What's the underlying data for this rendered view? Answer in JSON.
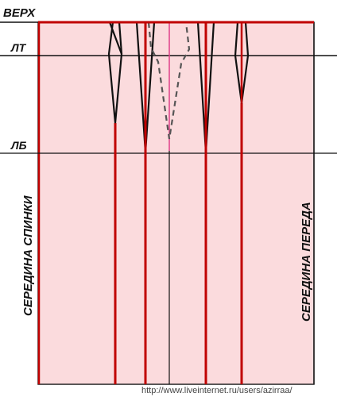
{
  "diagram": {
    "labels": {
      "top": "ВЕРХ",
      "waist": "ЛТ",
      "hip": "ЛБ",
      "back_center": "СЕРЕДИНА СПИНКИ",
      "front_center": "СЕРЕДИНА ПЕРЕДА"
    },
    "watermark": "http://www.liveinternet.ru/users/azirraa/",
    "colors": {
      "fill": "#fbdbdd",
      "construction_line": "#c00000",
      "dart_line": "#111111",
      "side_seam": "#e0418a",
      "guide_line": "#111111",
      "dashed_dart": "#555555"
    }
  }
}
